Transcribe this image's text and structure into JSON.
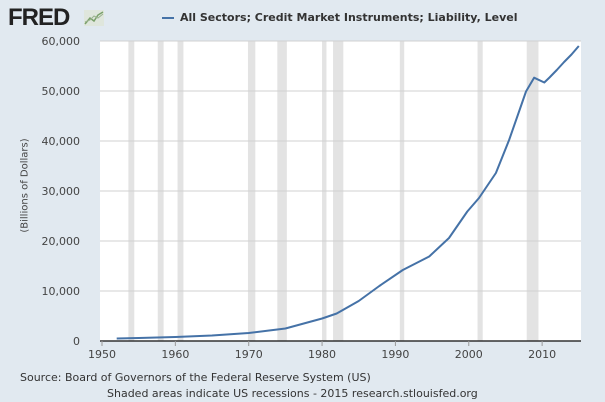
{
  "logo": "FRED",
  "chart_data": {
    "type": "line",
    "title": "",
    "ylabel": "(Billions of Dollars)",
    "xlabel": "",
    "xlim": [
      1950,
      2015.3
    ],
    "ylim": [
      0,
      60000
    ],
    "xticks": [
      1950,
      1960,
      1970,
      1980,
      1990,
      2000,
      2010
    ],
    "yticks": [
      0,
      10000,
      20000,
      30000,
      40000,
      50000,
      60000
    ],
    "ytick_labels": [
      "0",
      "10,000",
      "20,000",
      "30,000",
      "40,000",
      "50,000",
      "60,000"
    ],
    "grid": true,
    "legend": "top",
    "series": [
      {
        "name": "All Sectors; Credit Market Instruments; Liability, Level",
        "color": "#4572a7",
        "x": [
          1952,
          1955,
          1960,
          1965,
          1970,
          1975,
          1980,
          1982,
          1985,
          1987.8,
          1991,
          1994.6,
          1997.3,
          1999.8,
          2001.4,
          2003.7,
          2005.5,
          2007,
          2007.8,
          2008.9,
          2010.3,
          2011,
          2012,
          2013,
          2014,
          2015
        ],
        "y": [
          500,
          600,
          800,
          1100,
          1600,
          2500,
          4500,
          5500,
          8000,
          11000,
          14200,
          16900,
          20600,
          25900,
          28600,
          33600,
          40200,
          46500,
          49900,
          52660,
          51700,
          52700,
          54200,
          55800,
          57300,
          59000
        ]
      }
    ],
    "recessions": [
      [
        1953.6,
        1954.4
      ],
      [
        1957.6,
        1958.4
      ],
      [
        1960.3,
        1961.1
      ],
      [
        1969.9,
        1970.9
      ],
      [
        1973.9,
        1975.2
      ],
      [
        1980.0,
        1980.6
      ],
      [
        1981.5,
        1982.9
      ],
      [
        1990.6,
        1991.2
      ],
      [
        2001.2,
        2001.9
      ],
      [
        2007.9,
        2009.5
      ]
    ]
  },
  "footer": {
    "source": "Source: Board of Governors of the Federal Reserve System (US)",
    "note": "Shaded areas indicate US recessions - 2015 research.stlouisfed.org"
  }
}
